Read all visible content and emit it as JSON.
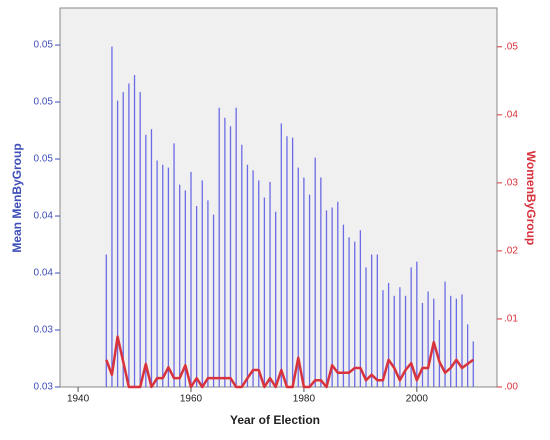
{
  "chart_data": {
    "type": "bar",
    "xlabel": "Year of Election",
    "ylabel": "Mean MenByGroup",
    "y2label": "WomenByGroup",
    "x": [
      1945,
      1946,
      1947,
      1948,
      1949,
      1950,
      1951,
      1952,
      1953,
      1954,
      1955,
      1956,
      1957,
      1958,
      1959,
      1960,
      1961,
      1962,
      1963,
      1964,
      1965,
      1966,
      1967,
      1968,
      1969,
      1970,
      1971,
      1972,
      1973,
      1974,
      1975,
      1976,
      1977,
      1978,
      1979,
      1980,
      1981,
      1982,
      1983,
      1984,
      1985,
      1986,
      1987,
      1988,
      1989,
      1990,
      1991,
      1992,
      1993,
      1994,
      1995,
      1996,
      1997,
      1998,
      1999,
      2000,
      2001,
      2002,
      2003,
      2004,
      2005,
      2006,
      2007,
      2008,
      2009,
      2010
    ],
    "series": [
      {
        "type": "bar",
        "color": "#6b6be6",
        "values": [
          0.0393,
          0.0539,
          0.0501,
          0.0507,
          0.0513,
          0.0519,
          0.0507,
          0.0477,
          0.0481,
          0.0459,
          0.0456,
          0.0454,
          0.0471,
          0.0442,
          0.0438,
          0.0451,
          0.0427,
          0.0445,
          0.0431,
          0.0421,
          0.0496,
          0.0489,
          0.0483,
          0.0496,
          0.047,
          0.0456,
          0.0452,
          0.0445,
          0.0433,
          0.0444,
          0.0423,
          0.0485,
          0.0476,
          0.0475,
          0.0454,
          0.0447,
          0.0435,
          0.0461,
          0.0447,
          0.0424,
          0.0426,
          0.043,
          0.0414,
          0.0405,
          0.0402,
          0.041,
          0.0384,
          0.0393,
          0.0393,
          0.0368,
          0.0373,
          0.0364,
          0.037,
          0.0364,
          0.0384,
          0.0388,
          0.0359,
          0.0367,
          0.0362,
          0.0347,
          0.0374,
          0.0364,
          0.0362,
          0.0365,
          0.0344,
          0.0332
        ]
      },
      {
        "type": "line",
        "axis": "y2",
        "color": "#d8323c",
        "values": [
          0.004,
          0.0018,
          0.0074,
          0.0037,
          0,
          0,
          0,
          0.0034,
          0,
          0.0013,
          0.0013,
          0.0029,
          0.0013,
          0.0013,
          0.0032,
          0,
          0.0013,
          0,
          0.0013,
          0.0013,
          0.0013,
          0.0013,
          0.0013,
          0,
          0,
          0.0013,
          0.0025,
          0.0025,
          0,
          0.0013,
          0,
          0.0025,
          0,
          0,
          0.0043,
          0,
          0,
          0.001,
          0.001,
          0,
          0.0032,
          0.0021,
          0.0021,
          0.0021,
          0.0028,
          0.0028,
          0.001,
          0.0018,
          0.001,
          0.001,
          0.004,
          0.0028,
          0.001,
          0.0025,
          0.0035,
          0.001,
          0.0028,
          0.0028,
          0.0066,
          0.0037,
          0.0021,
          0.0028,
          0.004,
          0.0028,
          0.0034,
          0.004
        ]
      }
    ],
    "xlim": [
      1936.8,
      2014.2
    ],
    "xticks": [
      1940,
      1960,
      1980,
      2000
    ],
    "ylim": [
      0.03,
      0.0566
    ],
    "yticks": [
      {
        "value": 0.03,
        "label": "0.03"
      },
      {
        "value": 0.034,
        "label": "0.03"
      },
      {
        "value": 0.038,
        "label": "0.04"
      },
      {
        "value": 0.042,
        "label": "0.04"
      },
      {
        "value": 0.046,
        "label": "0.05"
      },
      {
        "value": 0.05,
        "label": "0.05"
      },
      {
        "value": 0.054,
        "label": "0.05"
      }
    ],
    "y2lim": [
      0,
      0.0557
    ],
    "y2ticks": [
      {
        "value": 0,
        "label": ".00"
      },
      {
        "value": 0.01,
        "label": ".01"
      },
      {
        "value": 0.02,
        "label": ".02"
      },
      {
        "value": 0.03,
        "label": ".03"
      },
      {
        "value": 0.04,
        "label": ".04"
      },
      {
        "value": 0.05,
        "label": ".05"
      }
    ]
  }
}
